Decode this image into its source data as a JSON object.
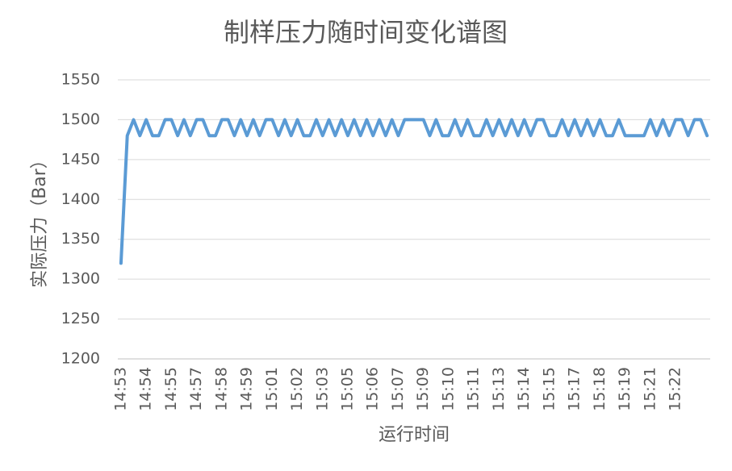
{
  "chart_data": {
    "type": "line",
    "title": "制样压力随时间变化谱图",
    "x_label": "运行时间",
    "y_label": "实际压力（Bar）",
    "categories": [
      "14:53",
      null,
      null,
      null,
      "14:54",
      null,
      null,
      null,
      "14:55",
      null,
      null,
      null,
      "14:57",
      null,
      null,
      null,
      "14:58",
      null,
      null,
      null,
      "14:59",
      null,
      null,
      null,
      "15:01",
      null,
      null,
      null,
      "15:02",
      null,
      null,
      null,
      "15:03",
      null,
      null,
      null,
      "15:05",
      null,
      null,
      null,
      "15:06",
      null,
      null,
      null,
      "15:07",
      null,
      null,
      null,
      "15:09",
      null,
      null,
      null,
      "15:10",
      null,
      null,
      null,
      "15:11",
      null,
      null,
      null,
      "15:13",
      null,
      null,
      null,
      "15:14",
      null,
      null,
      null,
      "15:15",
      null,
      null,
      null,
      "15:17",
      null,
      null,
      null,
      "15:18",
      null,
      null,
      null,
      "15:19",
      null,
      null,
      null,
      "15:21",
      null,
      null,
      null,
      "15:22",
      null,
      null,
      null,
      null,
      null
    ],
    "series": [
      {
        "name": "实际压力",
        "color": "#5b9bd5",
        "values": [
          1320,
          1480,
          1500,
          1480,
          1500,
          1480,
          1480,
          1500,
          1500,
          1480,
          1500,
          1480,
          1500,
          1500,
          1480,
          1480,
          1500,
          1500,
          1480,
          1500,
          1480,
          1500,
          1480,
          1500,
          1500,
          1480,
          1500,
          1480,
          1500,
          1480,
          1480,
          1500,
          1480,
          1500,
          1480,
          1500,
          1480,
          1500,
          1480,
          1500,
          1480,
          1500,
          1480,
          1500,
          1480,
          1500,
          1500,
          1500,
          1500,
          1480,
          1500,
          1480,
          1480,
          1500,
          1480,
          1500,
          1480,
          1480,
          1500,
          1480,
          1500,
          1480,
          1500,
          1480,
          1500,
          1480,
          1500,
          1500,
          1480,
          1480,
          1500,
          1480,
          1500,
          1480,
          1500,
          1480,
          1500,
          1480,
          1480,
          1500,
          1480,
          1480,
          1480,
          1480,
          1500,
          1480,
          1500,
          1480,
          1500,
          1500,
          1480,
          1500,
          1500,
          1480
        ]
      }
    ],
    "ylim": [
      1200,
      1550
    ],
    "yticks": [
      1200,
      1250,
      1300,
      1350,
      1400,
      1450,
      1500,
      1550
    ],
    "grid": true
  }
}
